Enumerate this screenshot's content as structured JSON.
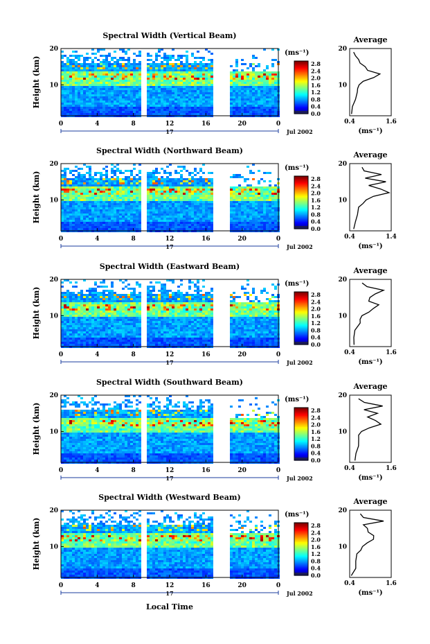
{
  "figure": {
    "xlabel": "Local Time",
    "ylabel": "Height (km)",
    "date_label": "Jul 2002",
    "day_label": "17",
    "profile_title": "Average",
    "unit_label": "(ms⁻¹)",
    "colorbar_ticks": [
      "2.8",
      "2.4",
      "2.0",
      "1.6",
      "1.2",
      "0.8",
      "0.4",
      "0.0"
    ]
  },
  "chart_data": [
    {
      "type": "heatmap",
      "title": "Spectral Width (Vertical Beam)",
      "beam": "vertical",
      "xlabel": "Local Time",
      "ylabel": "Height (km)",
      "xlim": [
        0,
        24
      ],
      "ylim": [
        1.5,
        20
      ],
      "x_ticks": [
        "0",
        "4",
        "8",
        "12",
        "16",
        "20",
        "0"
      ],
      "y_ticks": [
        "10",
        "20"
      ],
      "data_gaps_hours": [
        [
          5.2,
          5.5
        ],
        [
          8.6,
          9.4
        ],
        [
          16.8,
          18.5
        ]
      ],
      "colorbar": {
        "min": 0.0,
        "max": 3.0,
        "ticks": [
          0.0,
          0.4,
          0.8,
          1.2,
          1.6,
          2.0,
          2.4,
          2.8
        ]
      },
      "average_profile": {
        "xlim": [
          0.4,
          1.6
        ],
        "x_ticks": [
          "0.4",
          "1.6"
        ],
        "y_ticks": [
          "10",
          "20"
        ],
        "height_km": [
          2,
          4,
          6,
          8,
          9,
          10,
          11,
          12,
          13,
          14,
          15,
          16,
          17,
          18,
          19
        ],
        "width_ms": [
          0.45,
          0.5,
          0.55,
          0.6,
          0.65,
          0.7,
          0.8,
          1.05,
          1.25,
          0.95,
          0.85,
          0.75,
          0.7,
          0.6,
          0.55
        ]
      }
    },
    {
      "type": "heatmap",
      "title": "Spectral Width (Northward Beam)",
      "beam": "northward",
      "xlabel": "Local Time",
      "ylabel": "Height (km)",
      "xlim": [
        0,
        24
      ],
      "ylim": [
        1.5,
        20
      ],
      "x_ticks": [
        "0",
        "4",
        "8",
        "12",
        "16",
        "20",
        "0"
      ],
      "y_ticks": [
        "10",
        "20"
      ],
      "data_gaps_hours": [
        [
          5.2,
          5.5
        ],
        [
          8.6,
          9.4
        ],
        [
          16.8,
          18.5
        ]
      ],
      "colorbar": {
        "min": 0.0,
        "max": 3.0,
        "ticks": [
          0.0,
          0.4,
          0.8,
          1.2,
          1.6,
          2.0,
          2.4,
          2.8
        ]
      },
      "average_profile": {
        "xlim": [
          0.4,
          1.4
        ],
        "x_ticks": [
          "0.4",
          "1.4"
        ],
        "y_ticks": [
          "10",
          "20"
        ],
        "height_km": [
          2,
          4,
          6,
          8,
          9,
          10,
          11,
          12,
          13,
          14,
          15,
          16,
          17,
          18,
          19
        ],
        "width_ms": [
          0.5,
          0.55,
          0.6,
          0.65,
          0.7,
          0.75,
          0.95,
          1.3,
          1.1,
          0.85,
          1.25,
          0.8,
          1.2,
          0.75,
          0.7
        ]
      }
    },
    {
      "type": "heatmap",
      "title": "Spectral Width (Eastward Beam)",
      "beam": "eastward",
      "xlabel": "Local Time",
      "ylabel": "Height (km)",
      "xlim": [
        0,
        24
      ],
      "ylim": [
        1.5,
        20
      ],
      "x_ticks": [
        "0",
        "4",
        "8",
        "12",
        "16",
        "20",
        "0"
      ],
      "y_ticks": [
        "10",
        "20"
      ],
      "data_gaps_hours": [
        [
          5.2,
          5.5
        ],
        [
          8.6,
          9.4
        ],
        [
          16.8,
          18.5
        ]
      ],
      "colorbar": {
        "min": 0.0,
        "max": 3.0,
        "ticks": [
          0.0,
          0.4,
          0.8,
          1.2,
          1.6,
          2.0,
          2.4,
          2.8
        ]
      },
      "average_profile": {
        "xlim": [
          0.4,
          1.6
        ],
        "x_ticks": [
          "0.4",
          "1.6"
        ],
        "y_ticks": [
          "10",
          "20"
        ],
        "height_km": [
          2,
          4,
          6,
          8,
          9,
          10,
          11,
          12,
          13,
          14,
          15,
          16,
          17,
          18,
          19
        ],
        "width_ms": [
          0.5,
          0.55,
          0.6,
          0.65,
          0.7,
          0.75,
          0.9,
          1.1,
          1.2,
          1.0,
          0.95,
          1.1,
          1.4,
          0.9,
          0.75
        ]
      }
    },
    {
      "type": "heatmap",
      "title": "Spectral Width (Southward Beam)",
      "beam": "southward",
      "xlabel": "Local Time",
      "ylabel": "Height (km)",
      "xlim": [
        0,
        24
      ],
      "ylim": [
        1.5,
        20
      ],
      "x_ticks": [
        "0",
        "4",
        "8",
        "12",
        "16",
        "20",
        "0"
      ],
      "y_ticks": [
        "10",
        "20"
      ],
      "data_gaps_hours": [
        [
          5.2,
          5.5
        ],
        [
          8.6,
          9.4
        ],
        [
          16.8,
          18.5
        ]
      ],
      "colorbar": {
        "min": 0.0,
        "max": 3.0,
        "ticks": [
          0.0,
          0.4,
          0.8,
          1.2,
          1.6,
          2.0,
          2.4,
          2.8
        ]
      },
      "average_profile": {
        "xlim": [
          0.4,
          1.6
        ],
        "x_ticks": [
          "0.4",
          "1.6"
        ],
        "y_ticks": [
          "10",
          "20"
        ],
        "height_km": [
          2,
          4,
          6,
          8,
          9,
          10,
          11,
          12,
          13,
          14,
          15,
          16,
          17,
          18,
          19
        ],
        "width_ms": [
          0.5,
          0.55,
          0.6,
          0.65,
          0.7,
          0.8,
          1.0,
          1.35,
          1.2,
          0.95,
          1.25,
          0.85,
          1.3,
          0.8,
          0.7
        ]
      }
    },
    {
      "type": "heatmap",
      "title": "Spectral Width (Westward Beam)",
      "beam": "westward",
      "xlabel": "Local Time",
      "ylabel": "Height (km)",
      "xlim": [
        0,
        24
      ],
      "ylim": [
        1.5,
        20
      ],
      "x_ticks": [
        "0",
        "4",
        "8",
        "12",
        "16",
        "20",
        "0"
      ],
      "y_ticks": [
        "10",
        "20"
      ],
      "data_gaps_hours": [
        [
          5.2,
          5.5
        ],
        [
          8.6,
          9.4
        ],
        [
          16.8,
          18.5
        ]
      ],
      "colorbar": {
        "min": 0.0,
        "max": 3.0,
        "ticks": [
          0.0,
          0.4,
          0.8,
          1.2,
          1.6,
          2.0,
          2.4,
          2.8
        ]
      },
      "average_profile": {
        "xlim": [
          0.4,
          1.6
        ],
        "x_ticks": [
          "0.4",
          "1.6"
        ],
        "y_ticks": [
          "10",
          "20"
        ],
        "height_km": [
          2,
          4,
          6,
          8,
          9,
          10,
          11,
          12,
          13,
          14,
          15,
          16,
          17,
          18,
          19
        ],
        "width_ms": [
          0.5,
          0.55,
          0.6,
          0.65,
          0.7,
          0.75,
          0.85,
          1.1,
          1.15,
          0.95,
          0.9,
          0.8,
          1.4,
          0.85,
          0.75
        ]
      }
    }
  ]
}
